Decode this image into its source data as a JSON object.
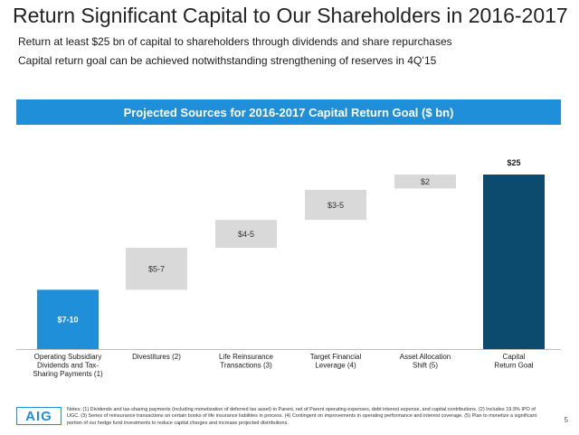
{
  "page": {
    "title": "Return Significant Capital to Our Shareholders in 2016-2017",
    "subtitle_1": "Return at least $25 bn of capital to shareholders through dividends and share repurchases",
    "subtitle_2": "Capital return goal can be achieved notwithstanding strengthening of reserves in 4Q’15",
    "footer_logo": "AIG",
    "notes": "Notes: (1) Dividends and tax-sharing payments (including monetization of deferred tax asset) to Parent, net of Parent operating expenses, debt interest expense, and capital contributions. (2) Includes 19.9% IPO of UGC. (3) Series of reinsurance transactions on certain books of life insurance liabilities in process. (4) Contingent on improvements in operating performance and interest coverage. (5) Plan to monetize a significant portion of our hedge fund investments to reduce capital charges and increase projected distributions.",
    "page_number": "5"
  },
  "chart_data": {
    "type": "bar",
    "subtype": "waterfall",
    "title": "Projected Sources for 2016-2017 Capital Return Goal ($ bn)",
    "unit": "$ bn",
    "ylim": [
      0,
      27
    ],
    "grid": false,
    "categories": [
      {
        "lines": [
          "Operating Subsidiary",
          "Dividends and Tax-",
          "Sharing Payments (1)"
        ]
      },
      {
        "lines": [
          "Divestitures (2)"
        ]
      },
      {
        "lines": [
          "Life Reinsurance",
          "Transactions (3)"
        ]
      },
      {
        "lines": [
          "Target Financial",
          "Leverage (4)"
        ]
      },
      {
        "lines": [
          "Asset Allocation",
          "Shift (5)"
        ]
      },
      {
        "lines": [
          "Capital",
          "Return Goal"
        ]
      }
    ],
    "bars": [
      {
        "label": "$7-10",
        "start": 0,
        "end": 8.5,
        "kind": "base"
      },
      {
        "label": "$5-7",
        "start": 8.5,
        "end": 14.5,
        "kind": "step"
      },
      {
        "label": "$4-5",
        "start": 14.5,
        "end": 18.5,
        "kind": "step"
      },
      {
        "label": "$3-5",
        "start": 18.5,
        "end": 22.8,
        "kind": "step"
      },
      {
        "label": "$2",
        "start": 23.0,
        "end": 25.0,
        "kind": "step"
      },
      {
        "label": "$25",
        "start": 0,
        "end": 25,
        "kind": "total"
      }
    ],
    "colors": {
      "base": "#1f8fd9",
      "step": "#d9d9d9",
      "total": "#0c4a6e",
      "header": "#1f8fd9"
    }
  }
}
